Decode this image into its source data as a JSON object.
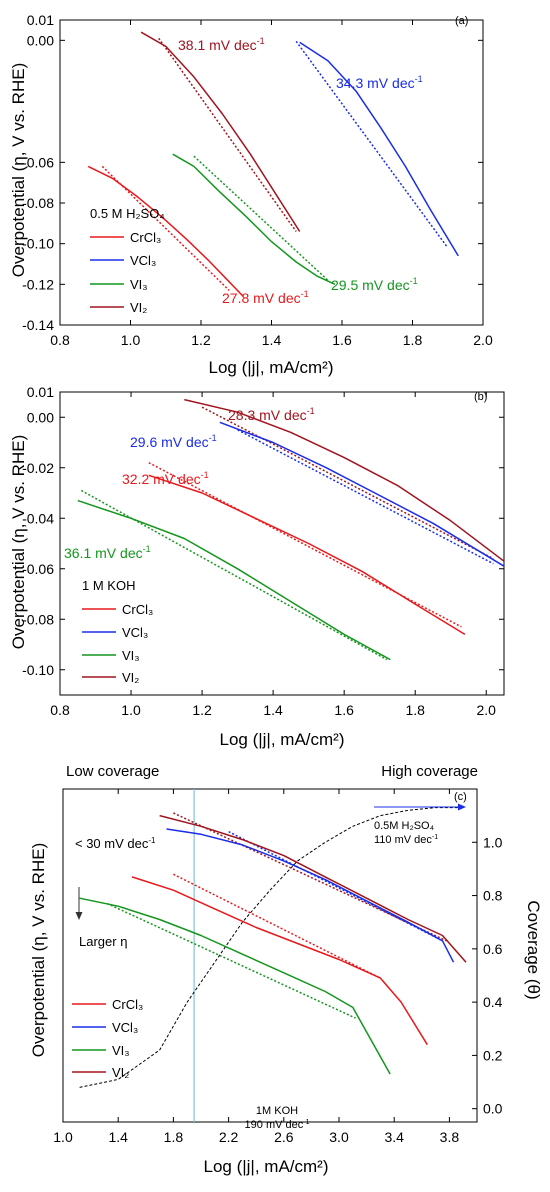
{
  "chart_data": [
    {
      "type": "line",
      "panel_tag": "(a)",
      "xlabel": "Log (|j|, mA/cm²)",
      "ylabel": "Overpotential (η, V vs. RHE)",
      "xlim": [
        0.8,
        2.0
      ],
      "ylim": [
        -0.14,
        0.01
      ],
      "xticks": [
        "0.8",
        "1.0",
        "1.2",
        "1.4",
        "1.6",
        "1.8",
        "2.0"
      ],
      "yticks": [
        "-0.14",
        "-0.12",
        "-0.10",
        "-0.08",
        "-0.06",
        "0.00",
        "0.01"
      ],
      "ytick_values": [
        -0.14,
        -0.12,
        -0.1,
        -0.08,
        -0.06,
        0.0,
        0.01
      ],
      "legend_title": "0.5 M H₂SO₄",
      "legend_position": "bottom-left",
      "series": [
        {
          "name": "CrCl₃",
          "color": "#e8191c",
          "x": [
            0.88,
            0.95,
            1.02,
            1.09,
            1.16,
            1.22,
            1.27,
            1.32
          ],
          "y": [
            -0.062,
            -0.068,
            -0.077,
            -0.087,
            -0.098,
            -0.108,
            -0.117,
            -0.126
          ]
        },
        {
          "name": "VCl₃",
          "color": "#1a2de8",
          "x": [
            1.48,
            1.56,
            1.64,
            1.71,
            1.78,
            1.85,
            1.93
          ],
          "y": [
            -0.001,
            -0.01,
            -0.025,
            -0.043,
            -0.062,
            -0.083,
            -0.106
          ]
        },
        {
          "name": "VI₃",
          "color": "#14961e",
          "x": [
            1.12,
            1.18,
            1.25,
            1.33,
            1.4,
            1.47,
            1.53,
            1.58
          ],
          "y": [
            -0.056,
            -0.062,
            -0.074,
            -0.087,
            -0.099,
            -0.109,
            -0.116,
            -0.12
          ]
        },
        {
          "name": "VI₂",
          "color": "#a0141e",
          "x": [
            1.03,
            1.1,
            1.18,
            1.26,
            1.34,
            1.41,
            1.48
          ],
          "y": [
            0.004,
            -0.003,
            -0.018,
            -0.036,
            -0.056,
            -0.075,
            -0.094
          ]
        }
      ],
      "fits": [
        {
          "series": "CrCl₃",
          "x": [
            0.92,
            1.28
          ],
          "y": [
            -0.062,
            -0.123
          ]
        },
        {
          "series": "VCl₃",
          "x": [
            1.47,
            1.9
          ],
          "y": [
            -0.0005,
            -0.102
          ]
        },
        {
          "series": "VI₃",
          "x": [
            1.18,
            1.56
          ],
          "y": [
            -0.057,
            -0.118
          ]
        },
        {
          "series": "VI₂",
          "x": [
            1.08,
            1.47
          ],
          "y": [
            0.001,
            -0.094
          ]
        }
      ],
      "annotations": [
        {
          "text": "38.1 mV dec",
          "sup": "-1",
          "color": "#a0141e",
          "x": 1.07,
          "y": 0.0025
        },
        {
          "text": "34.3 mV dec",
          "sup": "-1",
          "color": "#1a2de8",
          "x": 1.52,
          "y": -0.012
        },
        {
          "text": "29.5 mV dec",
          "sup": "-1",
          "color": "#14961e",
          "x": 1.53,
          "y": -0.123
        },
        {
          "text": "27.8 mV dec",
          "sup": "-1",
          "color": "#e8191c",
          "x": 1.19,
          "y": -0.13
        }
      ]
    },
    {
      "type": "line",
      "panel_tag": "(b)",
      "xlabel": "Log (|j|, mA/cm²)",
      "ylabel": "Overpotential (η, V vs. RHE)",
      "xlim": [
        0.8,
        2.05
      ],
      "ylim": [
        -0.11,
        0.01
      ],
      "xticks": [
        "0.8",
        "1.0",
        "1.2",
        "1.4",
        "1.6",
        "1.8",
        "2.0"
      ],
      "yticks": [
        "-0.10",
        "-0.08",
        "-0.06",
        "-0.04",
        "-0.02",
        "0.00",
        "0.01"
      ],
      "ytick_values": [
        -0.1,
        -0.08,
        -0.06,
        -0.04,
        -0.02,
        0.0,
        0.01
      ],
      "legend_title": "1 M KOH",
      "legend_position": "bottom-left",
      "series": [
        {
          "name": "CrCl₃",
          "color": "#e8191c",
          "x": [
            1.05,
            1.2,
            1.35,
            1.5,
            1.65,
            1.8,
            1.94
          ],
          "y": [
            -0.023,
            -0.03,
            -0.04,
            -0.05,
            -0.061,
            -0.074,
            -0.086
          ]
        },
        {
          "name": "VCl₃",
          "color": "#1a2de8",
          "x": [
            1.25,
            1.4,
            1.55,
            1.7,
            1.85,
            2.05
          ],
          "y": [
            -0.002,
            -0.01,
            -0.02,
            -0.031,
            -0.042,
            -0.059
          ]
        },
        {
          "name": "VI₃",
          "color": "#14961e",
          "x": [
            0.85,
            1.0,
            1.15,
            1.3,
            1.45,
            1.6,
            1.73
          ],
          "y": [
            -0.033,
            -0.04,
            -0.048,
            -0.06,
            -0.073,
            -0.086,
            -0.096
          ]
        },
        {
          "name": "VI₂",
          "color": "#a0141e",
          "x": [
            1.15,
            1.3,
            1.45,
            1.6,
            1.75,
            1.9,
            2.05
          ],
          "y": [
            0.007,
            0.002,
            -0.006,
            -0.016,
            -0.027,
            -0.041,
            -0.057
          ]
        }
      ],
      "fits": [
        {
          "series": "CrCl₃",
          "x": [
            1.05,
            1.93
          ],
          "y": [
            -0.018,
            -0.083
          ]
        },
        {
          "series": "VCl₃",
          "x": [
            1.3,
            2.02
          ],
          "y": [
            -0.005,
            -0.058
          ]
        },
        {
          "series": "VI₃",
          "x": [
            0.86,
            1.72
          ],
          "y": [
            -0.029,
            -0.096
          ]
        },
        {
          "series": "VI₂",
          "x": [
            1.2,
            2.02
          ],
          "y": [
            0.004,
            -0.056
          ]
        }
      ],
      "annotations": [
        {
          "text": "28.3 mV dec",
          "sup": "-1",
          "color": "#a0141e",
          "x": 1.27,
          "y": 0.006
        },
        {
          "text": "29.6 mV dec",
          "sup": "-1",
          "color": "#1a2de8",
          "x": 1.04,
          "y": -0.003
        },
        {
          "text": "32.2 mV dec",
          "sup": "-1",
          "color": "#e8191c",
          "x": 0.96,
          "y": -0.015
        },
        {
          "text": "36.1 mV dec",
          "sup": "-1",
          "color": "#14961e",
          "x": 0.86,
          "y": -0.046
        }
      ]
    },
    {
      "type": "line",
      "panel_tag": "(c)",
      "xlabel": "Log (|j|, mA/cm²)",
      "ylabel": "Overpotential (η, V vs. RHE)",
      "ylabel_right": "Coverage (θ)",
      "xlim": [
        1.0,
        4.0
      ],
      "xticks": [
        "1.0",
        "1.4",
        "1.8",
        "2.2",
        "2.6",
        "3.0",
        "3.4",
        "3.8"
      ],
      "y2lim": [
        -0.05,
        1.2
      ],
      "y2ticks": [
        "0.0",
        "0.2",
        "0.4",
        "0.6",
        "0.8",
        "1.0"
      ],
      "y2tick_values": [
        0.0,
        0.2,
        0.4,
        0.6,
        0.8,
        1.0
      ],
      "header_left": "Low coverage",
      "header_right": "High coverage",
      "reference_line_x": 1.95,
      "legend_position": "bottom-left",
      "series": [
        {
          "name": "CrCl₃",
          "color": "#e8191c",
          "x": [
            1.5,
            1.8,
            2.1,
            2.4,
            2.7,
            3.0,
            3.3,
            3.45,
            3.64
          ],
          "y": [
            0.87,
            0.82,
            0.75,
            0.68,
            0.62,
            0.56,
            0.49,
            0.4,
            0.24
          ]
        },
        {
          "name": "VCl₃",
          "color": "#1a2de8",
          "x": [
            1.75,
            2.0,
            2.3,
            2.6,
            2.9,
            3.2,
            3.5,
            3.75,
            3.83
          ],
          "y": [
            1.05,
            1.03,
            0.99,
            0.93,
            0.86,
            0.78,
            0.7,
            0.63,
            0.55
          ]
        },
        {
          "name": "VI₃",
          "color": "#14961e",
          "x": [
            1.12,
            1.4,
            1.7,
            2.0,
            2.3,
            2.6,
            2.9,
            3.1,
            3.37
          ],
          "y": [
            0.79,
            0.76,
            0.71,
            0.65,
            0.58,
            0.51,
            0.44,
            0.38,
            0.13
          ]
        },
        {
          "name": "VI₂",
          "color": "#a0141e",
          "x": [
            1.7,
            2.0,
            2.3,
            2.6,
            2.9,
            3.2,
            3.5,
            3.75,
            3.92
          ],
          "y": [
            1.1,
            1.06,
            1.01,
            0.95,
            0.87,
            0.79,
            0.71,
            0.65,
            0.55
          ]
        }
      ],
      "fits": [
        {
          "series": "CrCl₃",
          "x": [
            1.8,
            3.3
          ],
          "y": [
            0.88,
            0.49
          ]
        },
        {
          "series": "VCl₃",
          "x": [
            2.2,
            3.75
          ],
          "y": [
            1.04,
            0.63
          ]
        },
        {
          "series": "VI₃",
          "x": [
            1.32,
            3.12
          ],
          "y": [
            0.77,
            0.34
          ]
        },
        {
          "series": "VI₂",
          "x": [
            1.8,
            3.78
          ],
          "y": [
            1.11,
            0.63
          ]
        }
      ],
      "coverage_curve": {
        "color": "#000000",
        "x": [
          1.12,
          1.4,
          1.7,
          1.9,
          2.1,
          2.3,
          2.5,
          2.7,
          2.9,
          3.1,
          3.3,
          3.5,
          3.7,
          3.9
        ],
        "y": [
          0.08,
          0.11,
          0.22,
          0.4,
          0.55,
          0.7,
          0.82,
          0.93,
          1.0,
          1.06,
          1.1,
          1.12,
          1.13,
          1.13
        ]
      },
      "annotations": [
        {
          "text": "< 30 mV dec",
          "sup": "-1",
          "color": "#000000"
        },
        {
          "text": "Larger η",
          "color": "#000000"
        },
        {
          "text": "0.5M H₂SO₄",
          "color": "#000000"
        },
        {
          "text": "110 mV dec",
          "sup": "-1",
          "color": "#000000"
        },
        {
          "text": "1M KOH",
          "color": "#000000"
        },
        {
          "text": "190 mV dec",
          "sup": "-1",
          "color": "#000000"
        }
      ]
    }
  ]
}
